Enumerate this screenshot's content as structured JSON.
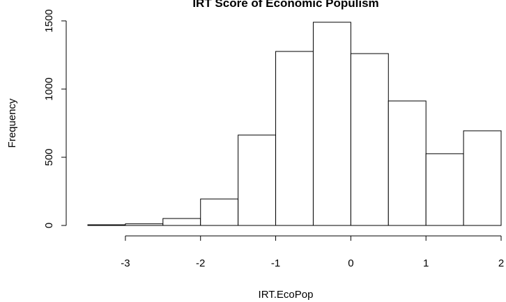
{
  "chart_data": {
    "type": "histogram",
    "title": "IRT Score of Economic Populism",
    "x_label": "IRT.EcoPop",
    "y_label": "Frequency",
    "bins": [
      -3.5,
      -3,
      -2.5,
      -2,
      -1.5,
      -1,
      -0.5,
      0,
      0.5,
      1,
      1.5,
      2
    ],
    "values": [
      5,
      12,
      51,
      194,
      663,
      1276,
      1490,
      1260,
      913,
      526,
      694
    ],
    "color": "#ffffff",
    "xlim": [
      -3.5,
      2
    ],
    "xticks": [
      -3,
      -2,
      -1,
      0,
      1,
      2
    ],
    "ylim": [
      0,
      1500
    ],
    "yticks": [
      0,
      500,
      1000,
      1500
    ]
  }
}
